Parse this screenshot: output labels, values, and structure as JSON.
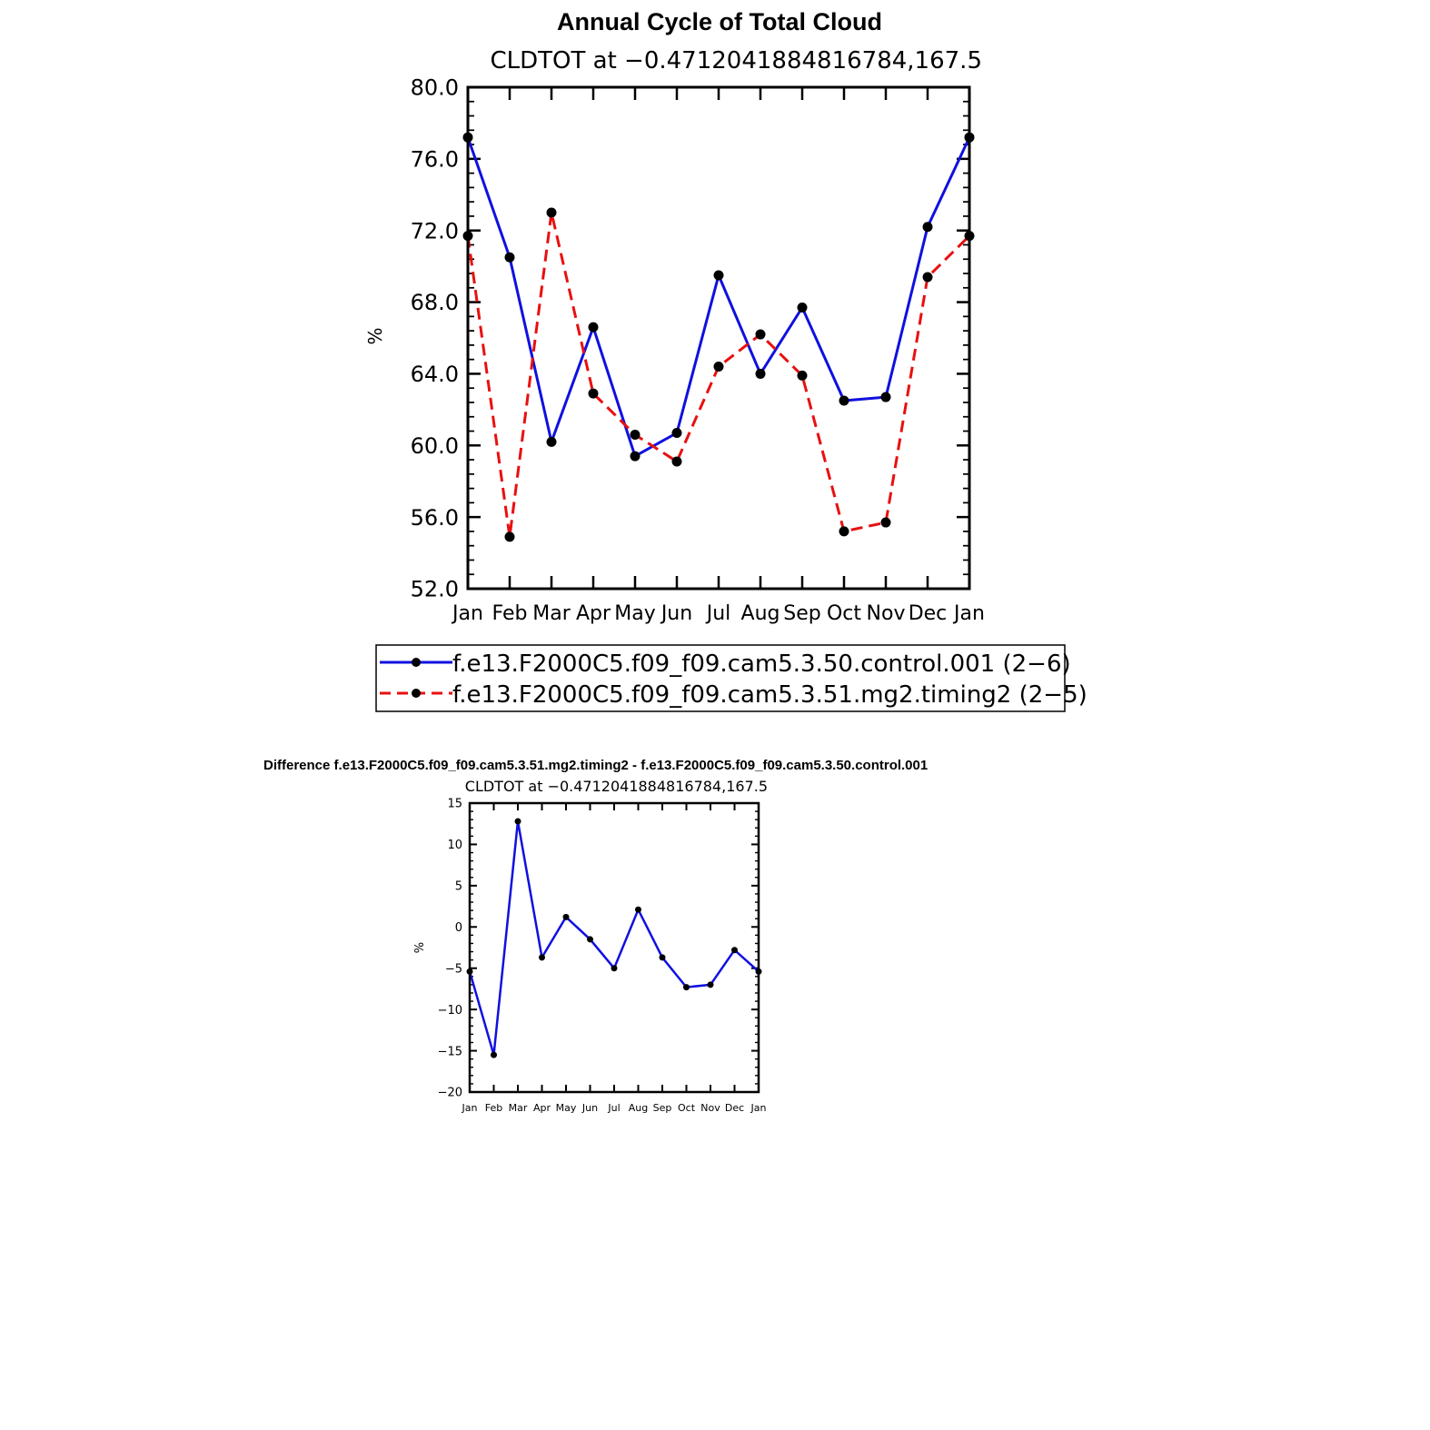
{
  "chart_data": [
    {
      "type": "line",
      "title": "Annual Cycle of Total Cloud",
      "subtitle": "CLDTOT at −0.4712041884816784,167.5",
      "xlabel": "",
      "ylabel": "%",
      "categories": [
        "Jan",
        "Feb",
        "Mar",
        "Apr",
        "May",
        "Jun",
        "Jul",
        "Aug",
        "Sep",
        "Oct",
        "Nov",
        "Dec",
        "Jan"
      ],
      "ylim": [
        52,
        80
      ],
      "yticks": [
        "52.0",
        "56.0",
        "60.0",
        "64.0",
        "68.0",
        "72.0",
        "76.0",
        "80.0"
      ],
      "grid": false,
      "legend_position": "bottom",
      "series": [
        {
          "name": "f.e13.F2000C5.f09_f09.cam5.3.50.control.001 (2−6)",
          "color": "#1010e0",
          "dash": "solid",
          "marker": "circle",
          "values": [
            77.2,
            70.5,
            60.2,
            66.6,
            59.4,
            60.7,
            69.5,
            64.0,
            67.7,
            62.5,
            62.7,
            72.2,
            77.2
          ]
        },
        {
          "name": "f.e13.F2000C5.f09_f09.cam5.3.51.mg2.timing2 (2−5)",
          "color": "#e81010",
          "dash": "dashed",
          "marker": "circle",
          "values": [
            71.7,
            54.9,
            73.0,
            62.9,
            60.6,
            59.1,
            64.4,
            66.2,
            63.9,
            55.2,
            55.7,
            69.4,
            71.7
          ]
        }
      ]
    },
    {
      "type": "line",
      "title": "Difference f.e13.F2000C5.f09_f09.cam5.3.51.mg2.timing2 - f.e13.F2000C5.f09_f09.cam5.3.50.control.001",
      "subtitle": "CLDTOT at −0.4712041884816784,167.5",
      "xlabel": "",
      "ylabel": "%",
      "categories": [
        "Jan",
        "Feb",
        "Mar",
        "Apr",
        "May",
        "Jun",
        "Jul",
        "Aug",
        "Sep",
        "Oct",
        "Nov",
        "Dec",
        "Jan"
      ],
      "ylim": [
        -20,
        15
      ],
      "yticks": [
        "−20",
        "−15",
        "−10",
        "−5",
        "0",
        "5",
        "10",
        "15"
      ],
      "grid": false,
      "series": [
        {
          "name": "difference",
          "color": "#1010e0",
          "dash": "solid",
          "marker": "circle",
          "values": [
            -5.4,
            -15.5,
            12.8,
            -3.7,
            1.2,
            -1.5,
            -5.0,
            2.1,
            -3.7,
            -7.3,
            -7.0,
            -2.8,
            -5.4
          ]
        }
      ]
    }
  ]
}
